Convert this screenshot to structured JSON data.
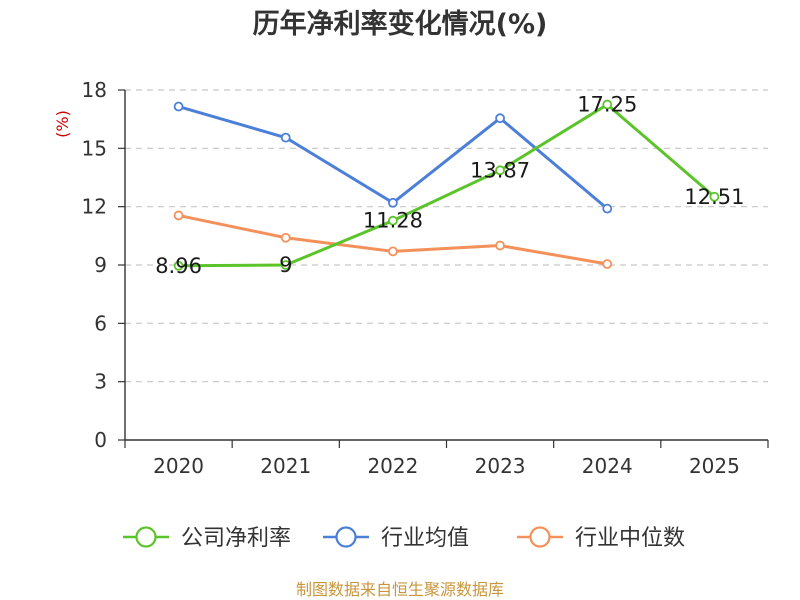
{
  "chart_data": {
    "type": "line",
    "title": "历年净利率变化情况(%)",
    "ylabel": "(%)",
    "xlabel": "",
    "categories": [
      "2020",
      "2021",
      "2022",
      "2023",
      "2024",
      "2025"
    ],
    "y_ticks": [
      "0",
      "3",
      "6",
      "9",
      "12",
      "15",
      "18"
    ],
    "ylim": [
      0,
      18
    ],
    "grid": "horizontal dashed",
    "legend_position": "bottom",
    "series": [
      {
        "name": "公司净利率",
        "color": "#5cc42b",
        "values": [
          8.96,
          9,
          11.28,
          13.87,
          17.25,
          12.51
        ],
        "labels": [
          "8.96",
          "9",
          "11.28",
          "13.87",
          "17.25",
          "12.51"
        ]
      },
      {
        "name": "行业均值",
        "color": "#4b7fd8",
        "values": [
          17.15,
          15.55,
          12.2,
          16.55,
          11.9,
          null
        ]
      },
      {
        "name": "行业中位数",
        "color": "#f4915a",
        "values": [
          11.55,
          10.4,
          9.7,
          10.0,
          9.05,
          null
        ]
      }
    ]
  },
  "unit_color": "#cc0000",
  "source_text": "制图数据来自恒生聚源数据库",
  "source_color": "#c8963c"
}
